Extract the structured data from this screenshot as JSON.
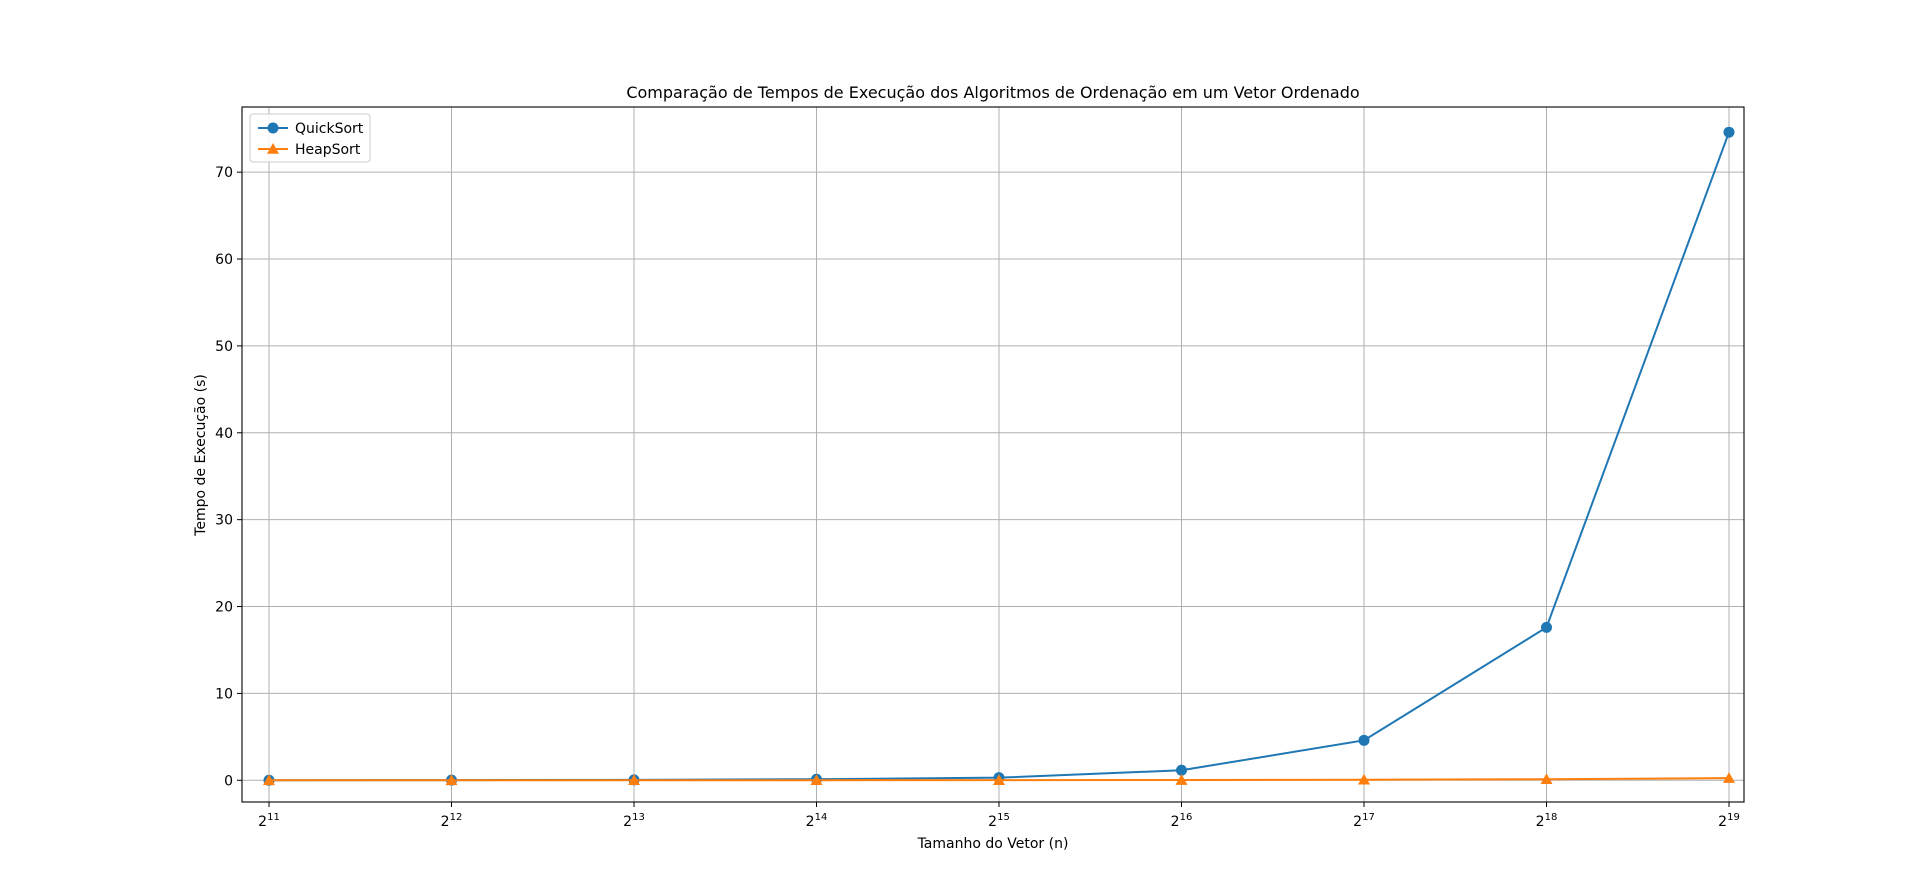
{
  "chart_data": {
    "type": "line",
    "title": "Comparação de Tempos de Execução dos Algoritmos de Ordenação em um Vetor Ordenado",
    "xlabel": "Tamanho do Vetor (n)",
    "ylabel": "Tempo de Execução (s)",
    "x_scale": "log2",
    "x": [
      2048,
      4096,
      8192,
      16384,
      32768,
      65536,
      131072,
      262144,
      524288
    ],
    "x_tick_labels": [
      {
        "base": "2",
        "exp": "11"
      },
      {
        "base": "2",
        "exp": "12"
      },
      {
        "base": "2",
        "exp": "13"
      },
      {
        "base": "2",
        "exp": "14"
      },
      {
        "base": "2",
        "exp": "15"
      },
      {
        "base": "2",
        "exp": "16"
      },
      {
        "base": "2",
        "exp": "17"
      },
      {
        "base": "2",
        "exp": "18"
      },
      {
        "base": "2",
        "exp": "19"
      }
    ],
    "ylim": [
      -2.5,
      77.5
    ],
    "y_ticks": [
      0,
      10,
      20,
      30,
      40,
      50,
      60,
      70
    ],
    "grid": true,
    "legend_position": "upper-left",
    "series": [
      {
        "name": "QuickSort",
        "color": "#1f77b4",
        "marker": "circle",
        "values": [
          0.005,
          0.02,
          0.05,
          0.12,
          0.3,
          1.15,
          4.6,
          17.6,
          74.6
        ]
      },
      {
        "name": "HeapSort",
        "color": "#ff7f0e",
        "marker": "triangle",
        "values": [
          0.001,
          0.002,
          0.004,
          0.008,
          0.016,
          0.03,
          0.06,
          0.12,
          0.25
        ]
      }
    ]
  }
}
